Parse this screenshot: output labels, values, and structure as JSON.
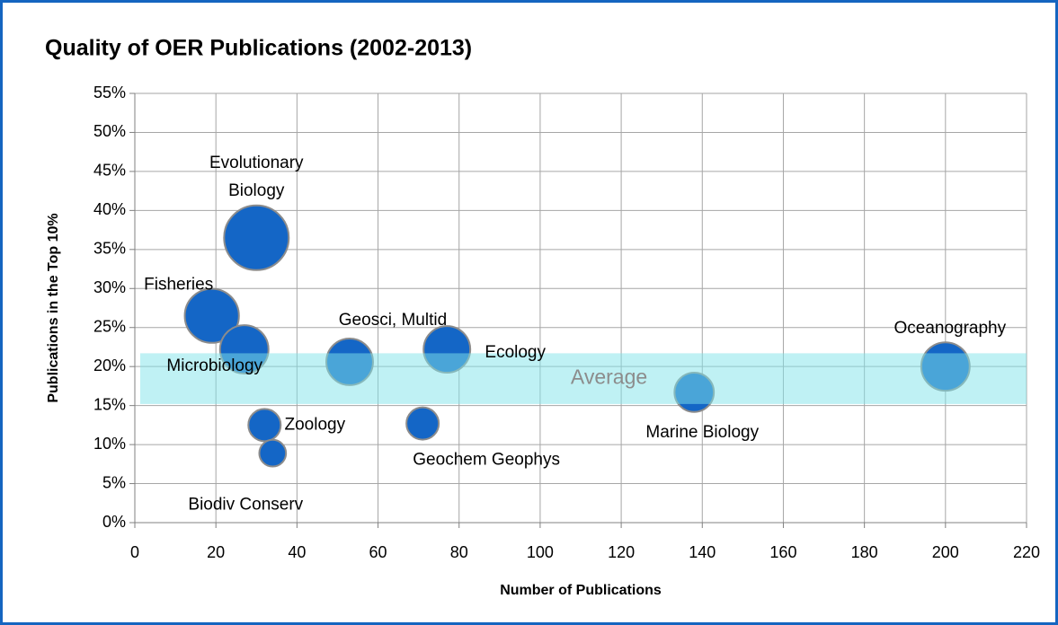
{
  "chart_data": {
    "type": "bubble",
    "title": "Quality of OER Publications (2002-2013)",
    "x_label": "Number of Publications",
    "y_label": "Publications in the Top 10%",
    "xlim": [
      0,
      220
    ],
    "xticks": [
      0,
      20,
      40,
      60,
      80,
      100,
      120,
      140,
      160,
      180,
      200,
      220
    ],
    "ylim": [
      0,
      55
    ],
    "yticks": [
      {
        "value": 0,
        "label": "0%"
      },
      {
        "value": 5,
        "label": "5%"
      },
      {
        "value": 10,
        "label": "10%"
      },
      {
        "value": 15,
        "label": "15%"
      },
      {
        "value": 20,
        "label": "20%"
      },
      {
        "value": 25,
        "label": "25%"
      },
      {
        "value": 30,
        "label": "30%"
      },
      {
        "value": 35,
        "label": "35%"
      },
      {
        "value": 40,
        "label": "40%"
      },
      {
        "value": 45,
        "label": "45%"
      },
      {
        "value": 50,
        "label": "50%"
      },
      {
        "value": 55,
        "label": "55%"
      }
    ],
    "grid": true,
    "color": "#1466c6",
    "series": [
      {
        "labels": [
          "Evolutionary Biology",
          "Fisheries",
          "Microbiology",
          "Geosci, Multid",
          "Ecology",
          "Zoology",
          "Biodiv Conserv",
          "Geochem Geophys",
          "Marine Biology",
          "Oceanography"
        ],
        "x": [
          30,
          19,
          27,
          53,
          77,
          32,
          34,
          71,
          138,
          200
        ],
        "values": [
          36.5,
          26.5,
          22.2,
          20.6,
          22.2,
          12.5,
          8.9,
          12.7,
          16.7,
          20
        ],
        "sizes": [
          100,
          70,
          56,
          52,
          52,
          25,
          17,
          25,
          37,
          56
        ]
      }
    ],
    "average_band": {
      "label": "Average",
      "range": [
        15.2,
        21.7
      ],
      "color": "#7fe3ea"
    }
  }
}
